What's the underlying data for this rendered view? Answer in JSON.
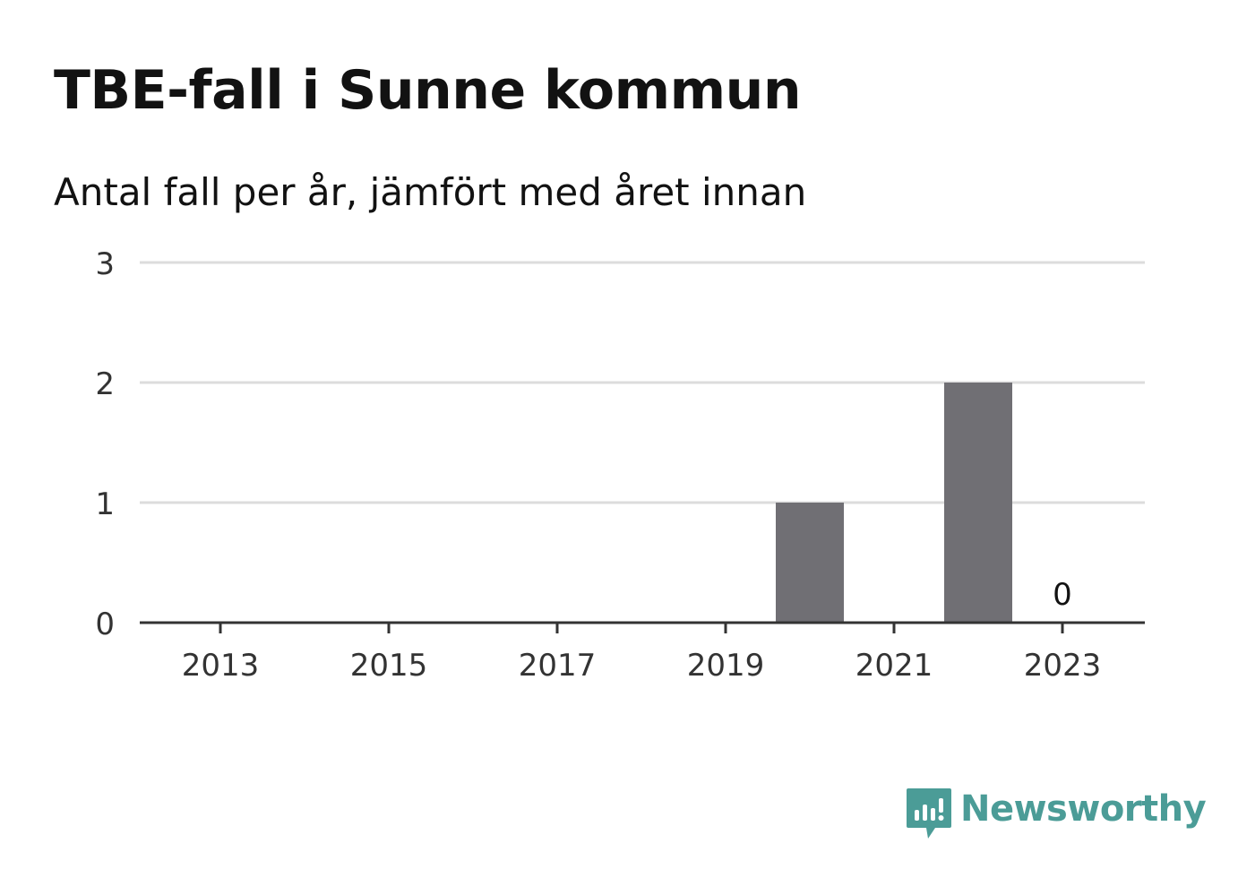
{
  "title": "TBE-fall i Sunne kommun",
  "subtitle": "Antal fall per år, jämfört med året innan",
  "chart_data": {
    "type": "bar",
    "title": "TBE-fall i Sunne kommun",
    "subtitle": "Antal fall per år, jämfört med året innan",
    "categories": [
      "2013",
      "2014",
      "2015",
      "2016",
      "2017",
      "2018",
      "2019",
      "2020",
      "2021",
      "2022",
      "2023"
    ],
    "values": [
      0,
      0,
      0,
      0,
      0,
      0,
      0,
      1,
      0,
      2,
      0
    ],
    "x_tick_labels": [
      "2013",
      "2015",
      "2017",
      "2019",
      "2021",
      "2023"
    ],
    "y_ticks": [
      "0",
      "1",
      "2",
      "3"
    ],
    "ylim": [
      0,
      3
    ],
    "grid": true,
    "data_labels": [
      {
        "category": "2023",
        "text": "0"
      }
    ],
    "bar_color": "#706f74",
    "gridline_color": "#dcdcdc",
    "axis_color": "#333333"
  },
  "branding": {
    "name": "Newsworthy",
    "color": "#4b9c97",
    "icon": "bar-chart-speech-bubble-icon"
  }
}
